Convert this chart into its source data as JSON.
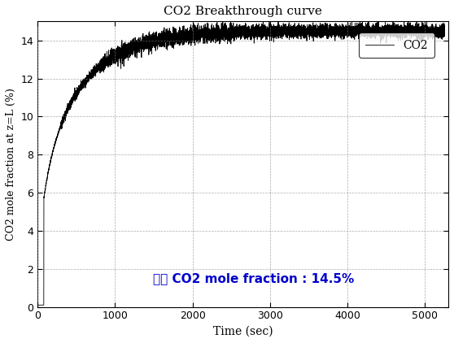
{
  "title": "CO2 Breakthrough curve",
  "xlabel": "Time (sec)",
  "ylabel": "CO2 mole fraction at z=L (%)",
  "xlim": [
    0,
    5300
  ],
  "ylim": [
    0,
    15
  ],
  "xticks": [
    0,
    1000,
    2000,
    3000,
    4000,
    5000
  ],
  "yticks": [
    0,
    2,
    4,
    6,
    8,
    10,
    12,
    14
  ],
  "legend_label": "CO2",
  "annotation_text": "최종 CO2 mole fraction : 14.5%",
  "annotation_color": "#0000CC",
  "line_color": "#000000",
  "background_color": "#ffffff",
  "grid_color": "#888888",
  "final_value": 14.5,
  "noise_amplitude_early": 0.08,
  "noise_amplitude_late": 0.15
}
